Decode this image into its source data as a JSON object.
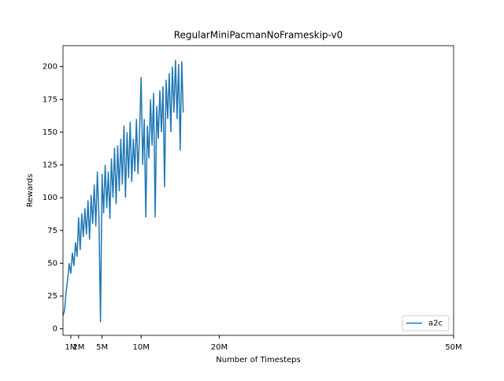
{
  "chart_data": {
    "type": "line",
    "title": "RegularMiniPacmanNoFrameskip-v0",
    "x_label": "Number of Timesteps",
    "y_label": "Rewards",
    "x": [
      0,
      200000,
      400000,
      600000,
      800000,
      1000000,
      1200000,
      1400000,
      1600000,
      1800000,
      2000000,
      2200000,
      2400000,
      2600000,
      2800000,
      3000000,
      3200000,
      3400000,
      3600000,
      3800000,
      4000000,
      4200000,
      4400000,
      4600000,
      4800000,
      5000000,
      5200000,
      5400000,
      5600000,
      5800000,
      6000000,
      6200000,
      6400000,
      6600000,
      6800000,
      7000000,
      7200000,
      7400000,
      7600000,
      7800000,
      8000000,
      8200000,
      8400000,
      8600000,
      8800000,
      9000000,
      9200000,
      9400000,
      9600000,
      9800000,
      10000000,
      10200000,
      10400000,
      10600000,
      10800000,
      11000000,
      11200000,
      11400000,
      11600000,
      11800000,
      12000000,
      12200000,
      12400000,
      12600000,
      12800000,
      13000000,
      13200000,
      13400000,
      13600000,
      13800000,
      14000000,
      14200000,
      14400000,
      14600000,
      14800000,
      15000000,
      15200000,
      15400000
    ],
    "series": [
      {
        "name": "a2c",
        "color": "#1f77b4",
        "values": [
          10,
          14,
          28,
          38,
          50,
          42,
          58,
          48,
          66,
          55,
          85,
          60,
          88,
          70,
          92,
          72,
          98,
          68,
          102,
          80,
          110,
          78,
          120,
          85,
          5,
          118,
          88,
          125,
          92,
          120,
          84,
          130,
          100,
          138,
          95,
          140,
          105,
          145,
          110,
          155,
          100,
          150,
          115,
          158,
          112,
          145,
          120,
          160,
          118,
          150,
          192,
          125,
          160,
          85,
          155,
          130,
          175,
          140,
          180,
          85,
          170,
          145,
          182,
          150,
          185,
          108,
          190,
          160,
          195,
          150,
          200,
          165,
          205,
          160,
          202,
          136,
          204,
          165
        ]
      }
    ],
    "xlim": [
      0,
      50000000
    ],
    "xticks": [
      {
        "value": 1000000,
        "label": "1M"
      },
      {
        "value": 2000000,
        "label": "2M"
      },
      {
        "value": 5000000,
        "label": "5M"
      },
      {
        "value": 10000000,
        "label": "10M"
      },
      {
        "value": 20000000,
        "label": "20M"
      },
      {
        "value": 50000000,
        "label": "50M"
      }
    ],
    "ylim": [
      -5,
      216
    ],
    "yticks": [
      0,
      25,
      50,
      75,
      100,
      125,
      150,
      175,
      200
    ],
    "legend": "lower right",
    "grid": false
  }
}
